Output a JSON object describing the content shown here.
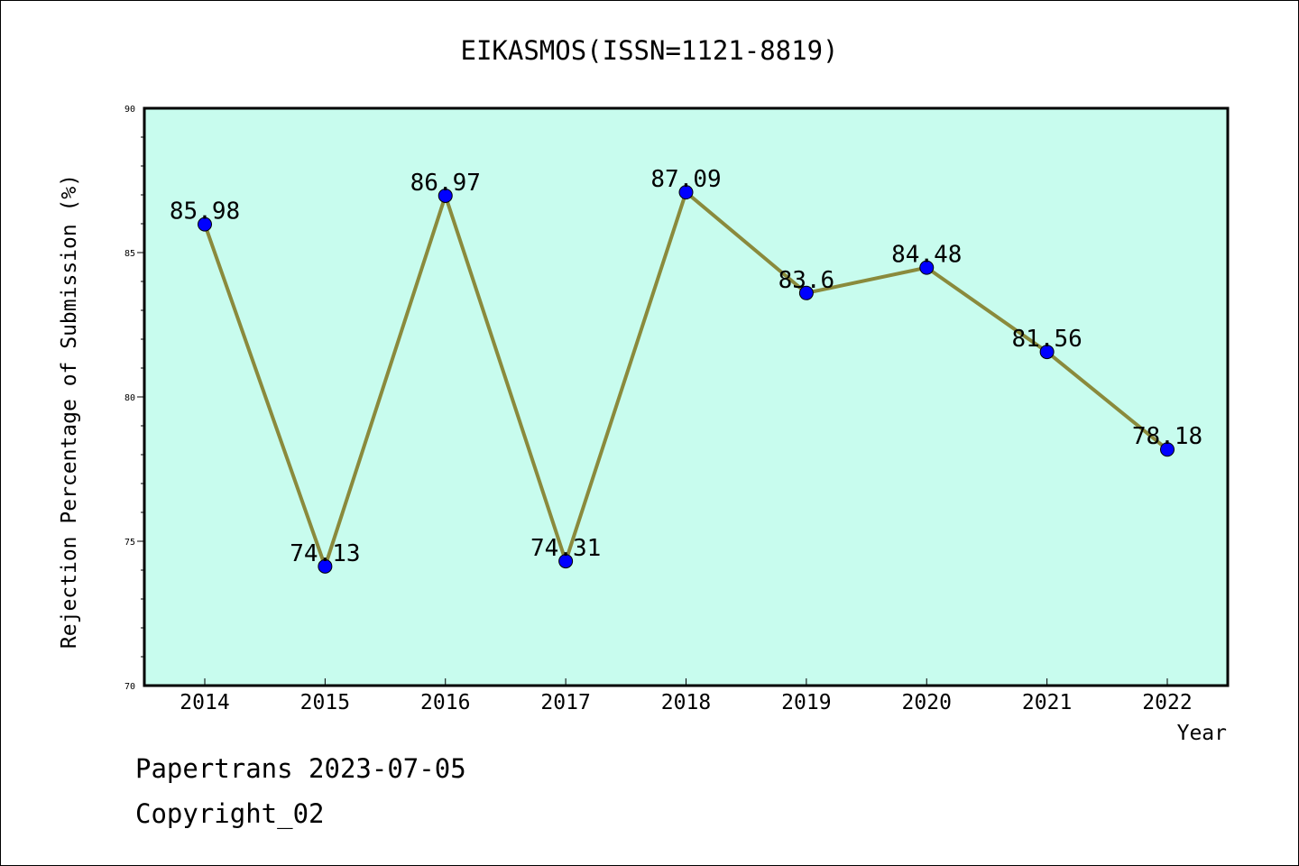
{
  "chart_data": {
    "type": "line",
    "title": "EIKASMOS(ISSN=1121-8819)",
    "xlabel": "Year",
    "ylabel": "Rejection Percentage of Submission (%)",
    "categories": [
      "2014",
      "2015",
      "2016",
      "2017",
      "2018",
      "2019",
      "2020",
      "2021",
      "2022"
    ],
    "values": [
      85.98,
      74.13,
      86.97,
      74.31,
      87.09,
      83.6,
      84.48,
      81.56,
      78.18
    ],
    "data_labels": [
      "85.98",
      "74.13",
      "86.97",
      "74.31",
      "87.09",
      "83.6",
      "84.48",
      "81.56",
      "78.18"
    ],
    "ylim": [
      70,
      90
    ],
    "yticks": [
      "70",
      "75",
      "80",
      "85",
      "90"
    ],
    "grid": false,
    "colors": {
      "plot_background": "#c8fcee",
      "line": "#8a8a3c",
      "marker": "#0000ff"
    }
  },
  "footer": {
    "line1": "Papertrans 2023-07-05",
    "line2": "Copyright_02"
  }
}
